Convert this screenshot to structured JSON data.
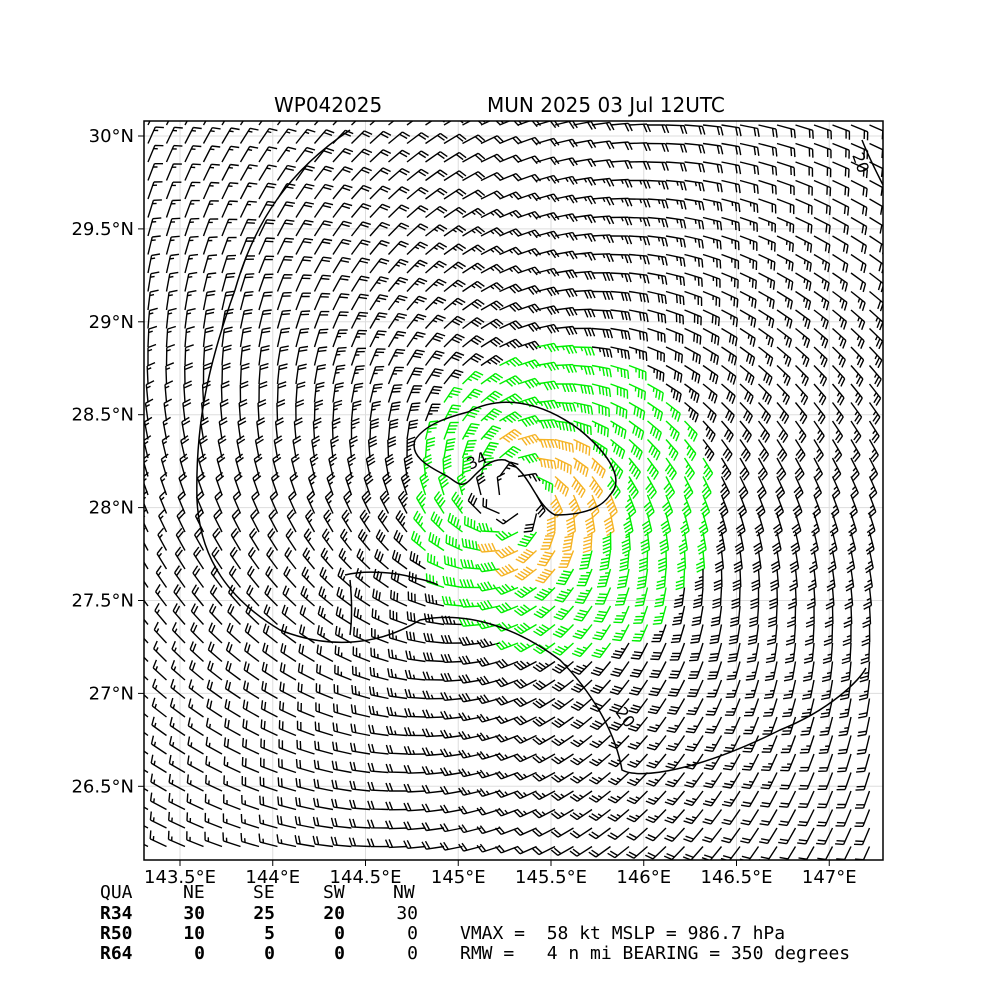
{
  "chart_data": {
    "type": "wind_barb_map",
    "title_left": "WP042025",
    "title_right": "MUN 2025 03 Jul 12UTC",
    "lon_ticks": [
      "143.5°E",
      "144°E",
      "144.5°E",
      "145°E",
      "145.5°E",
      "146°E",
      "146.5°E",
      "147°E"
    ],
    "lat_ticks": [
      "30°N",
      "29.5°N",
      "29°N",
      "28.5°N",
      "28°N",
      "27.5°N",
      "27°N",
      "26.5°N"
    ],
    "lon_range": [
      143.5,
      147.5
    ],
    "lat_range": [
      26.1,
      30.1
    ],
    "storm_center": {
      "lon": 145.3,
      "lat": 28.05
    },
    "barb_colors": {
      "below_34kt": "#000000",
      "34_to_50kt": "#00ee00",
      "50_to_64kt": "#f5b324"
    },
    "contour_labels": [
      "34",
      "20",
      "20"
    ],
    "grid": true
  },
  "table": {
    "header": [
      "QUA",
      "NE",
      "SE",
      "SW",
      "NW"
    ],
    "rows": [
      {
        "label": "R34",
        "values": [
          "30",
          "25",
          "20",
          "30"
        ]
      },
      {
        "label": "R50",
        "values": [
          "10",
          "5",
          "0",
          "0"
        ]
      },
      {
        "label": "R64",
        "values": [
          "0",
          "0",
          "0",
          "0"
        ]
      }
    ]
  },
  "info": {
    "line1": "VMAX =  58 kt MSLP = 986.7 hPa",
    "line2": "RMW =   4 n mi BEARING = 350 degrees"
  }
}
